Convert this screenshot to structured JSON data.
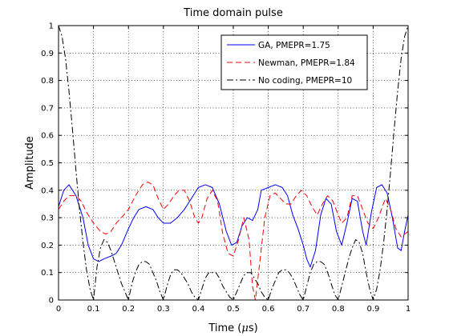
{
  "chart_data": {
    "type": "line",
    "title": "Time domain pulse",
    "xlabel_prefix": "Time (",
    "xlabel_mu": "μ",
    "xlabel_suffix": "s)",
    "ylabel": "Amplitude",
    "xlim": [
      0,
      1
    ],
    "ylim": [
      0,
      1
    ],
    "xticks": [
      0,
      0.1,
      0.2,
      0.3,
      0.4,
      0.5,
      0.6,
      0.7,
      0.8,
      0.9,
      1
    ],
    "xtick_labels": [
      "0",
      "0.1",
      "0.2",
      "0.3",
      "0.4",
      "0.5",
      "0.6",
      "0.7",
      "0.8",
      "0.9",
      "1"
    ],
    "yticks": [
      0,
      0.1,
      0.2,
      0.3,
      0.4,
      0.5,
      0.6,
      0.7,
      0.8,
      0.9,
      1
    ],
    "ytick_labels": [
      "0",
      "0.1",
      "0.2",
      "0.3",
      "0.4",
      "0.5",
      "0.6",
      "0.7",
      "0.8",
      "0.9",
      "1"
    ],
    "grid": true,
    "legend_position": "top-right",
    "series": [
      {
        "name": "GA, PMEPR=1.75",
        "color": "#0000ff",
        "dash": "solid",
        "points": [
          [
            0,
            0.34
          ],
          [
            0.015,
            0.4
          ],
          [
            0.03,
            0.42
          ],
          [
            0.05,
            0.38
          ],
          [
            0.07,
            0.3
          ],
          [
            0.085,
            0.2
          ],
          [
            0.1,
            0.15
          ],
          [
            0.115,
            0.14
          ],
          [
            0.13,
            0.15
          ],
          [
            0.15,
            0.16
          ],
          [
            0.165,
            0.17
          ],
          [
            0.18,
            0.2
          ],
          [
            0.2,
            0.26
          ],
          [
            0.215,
            0.3
          ],
          [
            0.23,
            0.33
          ],
          [
            0.25,
            0.34
          ],
          [
            0.27,
            0.33
          ],
          [
            0.285,
            0.3
          ],
          [
            0.3,
            0.28
          ],
          [
            0.32,
            0.28
          ],
          [
            0.34,
            0.3
          ],
          [
            0.36,
            0.33
          ],
          [
            0.38,
            0.37
          ],
          [
            0.4,
            0.41
          ],
          [
            0.42,
            0.42
          ],
          [
            0.44,
            0.41
          ],
          [
            0.46,
            0.35
          ],
          [
            0.48,
            0.25
          ],
          [
            0.495,
            0.2
          ],
          [
            0.51,
            0.21
          ],
          [
            0.525,
            0.27
          ],
          [
            0.54,
            0.3
          ],
          [
            0.555,
            0.29
          ],
          [
            0.57,
            0.33
          ],
          [
            0.58,
            0.4
          ],
          [
            0.6,
            0.41
          ],
          [
            0.62,
            0.42
          ],
          [
            0.64,
            0.41
          ],
          [
            0.655,
            0.38
          ],
          [
            0.67,
            0.31
          ],
          [
            0.685,
            0.26
          ],
          [
            0.7,
            0.2
          ],
          [
            0.71,
            0.15
          ],
          [
            0.72,
            0.12
          ],
          [
            0.735,
            0.18
          ],
          [
            0.75,
            0.31
          ],
          [
            0.765,
            0.37
          ],
          [
            0.78,
            0.35
          ],
          [
            0.795,
            0.25
          ],
          [
            0.81,
            0.2
          ],
          [
            0.825,
            0.28
          ],
          [
            0.84,
            0.37
          ],
          [
            0.855,
            0.36
          ],
          [
            0.87,
            0.25
          ],
          [
            0.88,
            0.2
          ],
          [
            0.895,
            0.32
          ],
          [
            0.91,
            0.41
          ],
          [
            0.925,
            0.42
          ],
          [
            0.94,
            0.39
          ],
          [
            0.955,
            0.3
          ],
          [
            0.97,
            0.19
          ],
          [
            0.98,
            0.18
          ],
          [
            0.99,
            0.25
          ],
          [
            1,
            0.31
          ]
        ]
      },
      {
        "name": "Newman, PMEPR=1.84",
        "color": "#ff0000",
        "dash": "7 4",
        "points": [
          [
            0,
            0.33
          ],
          [
            0.015,
            0.36
          ],
          [
            0.03,
            0.38
          ],
          [
            0.05,
            0.38
          ],
          [
            0.065,
            0.36
          ],
          [
            0.08,
            0.32
          ],
          [
            0.1,
            0.28
          ],
          [
            0.12,
            0.25
          ],
          [
            0.135,
            0.24
          ],
          [
            0.15,
            0.25
          ],
          [
            0.165,
            0.28
          ],
          [
            0.18,
            0.3
          ],
          [
            0.2,
            0.33
          ],
          [
            0.22,
            0.38
          ],
          [
            0.24,
            0.42
          ],
          [
            0.255,
            0.43
          ],
          [
            0.27,
            0.42
          ],
          [
            0.285,
            0.37
          ],
          [
            0.3,
            0.33
          ],
          [
            0.315,
            0.35
          ],
          [
            0.33,
            0.38
          ],
          [
            0.345,
            0.4
          ],
          [
            0.36,
            0.4
          ],
          [
            0.375,
            0.36
          ],
          [
            0.39,
            0.3
          ],
          [
            0.4,
            0.28
          ],
          [
            0.41,
            0.3
          ],
          [
            0.425,
            0.37
          ],
          [
            0.44,
            0.4
          ],
          [
            0.455,
            0.36
          ],
          [
            0.47,
            0.24
          ],
          [
            0.485,
            0.17
          ],
          [
            0.5,
            0.16
          ],
          [
            0.515,
            0.22
          ],
          [
            0.53,
            0.3
          ],
          [
            0.545,
            0.22
          ],
          [
            0.555,
            0.05
          ],
          [
            0.563,
            0.0
          ],
          [
            0.575,
            0.13
          ],
          [
            0.59,
            0.3
          ],
          [
            0.605,
            0.38
          ],
          [
            0.62,
            0.39
          ],
          [
            0.635,
            0.37
          ],
          [
            0.65,
            0.35
          ],
          [
            0.665,
            0.35
          ],
          [
            0.68,
            0.38
          ],
          [
            0.695,
            0.4
          ],
          [
            0.71,
            0.38
          ],
          [
            0.725,
            0.34
          ],
          [
            0.74,
            0.31
          ],
          [
            0.755,
            0.35
          ],
          [
            0.77,
            0.38
          ],
          [
            0.785,
            0.36
          ],
          [
            0.8,
            0.31
          ],
          [
            0.81,
            0.28
          ],
          [
            0.825,
            0.3
          ],
          [
            0.84,
            0.38
          ],
          [
            0.855,
            0.38
          ],
          [
            0.87,
            0.33
          ],
          [
            0.885,
            0.28
          ],
          [
            0.9,
            0.26
          ],
          [
            0.915,
            0.3
          ],
          [
            0.935,
            0.37
          ],
          [
            0.95,
            0.33
          ],
          [
            0.965,
            0.26
          ],
          [
            0.98,
            0.23
          ],
          [
            0.99,
            0.24
          ],
          [
            1,
            0.25
          ]
        ]
      },
      {
        "name": "No coding, PMEPR=10",
        "color": "#000000",
        "dash": "8 3 2 3",
        "points": [
          [
            0,
            1.0
          ],
          [
            0.01,
            0.96
          ],
          [
            0.02,
            0.88
          ],
          [
            0.03,
            0.76
          ],
          [
            0.04,
            0.62
          ],
          [
            0.05,
            0.47
          ],
          [
            0.06,
            0.33
          ],
          [
            0.07,
            0.21
          ],
          [
            0.08,
            0.11
          ],
          [
            0.09,
            0.04
          ],
          [
            0.1,
            0.0
          ],
          [
            0.11,
            0.12
          ],
          [
            0.12,
            0.19
          ],
          [
            0.13,
            0.22
          ],
          [
            0.14,
            0.21
          ],
          [
            0.15,
            0.18
          ],
          [
            0.16,
            0.14
          ],
          [
            0.17,
            0.1
          ],
          [
            0.18,
            0.06
          ],
          [
            0.19,
            0.03
          ],
          [
            0.2,
            0.0
          ],
          [
            0.21,
            0.06
          ],
          [
            0.22,
            0.1
          ],
          [
            0.23,
            0.13
          ],
          [
            0.24,
            0.14
          ],
          [
            0.25,
            0.14
          ],
          [
            0.26,
            0.13
          ],
          [
            0.27,
            0.1
          ],
          [
            0.28,
            0.07
          ],
          [
            0.29,
            0.03
          ],
          [
            0.3,
            0.0
          ],
          [
            0.31,
            0.05
          ],
          [
            0.32,
            0.09
          ],
          [
            0.33,
            0.11
          ],
          [
            0.34,
            0.11
          ],
          [
            0.35,
            0.1
          ],
          [
            0.36,
            0.08
          ],
          [
            0.37,
            0.06
          ],
          [
            0.38,
            0.03
          ],
          [
            0.39,
            0.01
          ],
          [
            0.4,
            0.0
          ],
          [
            0.41,
            0.04
          ],
          [
            0.42,
            0.08
          ],
          [
            0.43,
            0.1
          ],
          [
            0.44,
            0.1
          ],
          [
            0.45,
            0.1
          ],
          [
            0.46,
            0.08
          ],
          [
            0.47,
            0.05
          ],
          [
            0.48,
            0.03
          ],
          [
            0.49,
            0.01
          ],
          [
            0.5,
            0.0
          ],
          [
            0.51,
            0.03
          ],
          [
            0.52,
            0.06
          ],
          [
            0.53,
            0.09
          ],
          [
            0.54,
            0.1
          ],
          [
            0.55,
            0.1
          ],
          [
            0.56,
            0.08
          ],
          [
            0.57,
            0.06
          ],
          [
            0.58,
            0.03
          ],
          [
            0.59,
            0.01
          ],
          [
            0.6,
            0.0
          ],
          [
            0.61,
            0.04
          ],
          [
            0.62,
            0.07
          ],
          [
            0.63,
            0.1
          ],
          [
            0.64,
            0.11
          ],
          [
            0.65,
            0.11
          ],
          [
            0.66,
            0.1
          ],
          [
            0.67,
            0.08
          ],
          [
            0.68,
            0.05
          ],
          [
            0.69,
            0.02
          ],
          [
            0.7,
            0.0
          ],
          [
            0.71,
            0.05
          ],
          [
            0.72,
            0.1
          ],
          [
            0.73,
            0.13
          ],
          [
            0.74,
            0.14
          ],
          [
            0.75,
            0.14
          ],
          [
            0.76,
            0.13
          ],
          [
            0.77,
            0.1
          ],
          [
            0.78,
            0.06
          ],
          [
            0.79,
            0.02
          ],
          [
            0.8,
            0.0
          ],
          [
            0.81,
            0.05
          ],
          [
            0.82,
            0.1
          ],
          [
            0.83,
            0.15
          ],
          [
            0.84,
            0.19
          ],
          [
            0.85,
            0.22
          ],
          [
            0.86,
            0.21
          ],
          [
            0.87,
            0.17
          ],
          [
            0.88,
            0.1
          ],
          [
            0.89,
            0.04
          ],
          [
            0.9,
            0.0
          ],
          [
            0.91,
            0.04
          ],
          [
            0.92,
            0.11
          ],
          [
            0.93,
            0.21
          ],
          [
            0.94,
            0.33
          ],
          [
            0.95,
            0.47
          ],
          [
            0.96,
            0.62
          ],
          [
            0.97,
            0.76
          ],
          [
            0.98,
            0.88
          ],
          [
            0.99,
            0.96
          ],
          [
            1,
            1.0
          ]
        ]
      }
    ]
  }
}
